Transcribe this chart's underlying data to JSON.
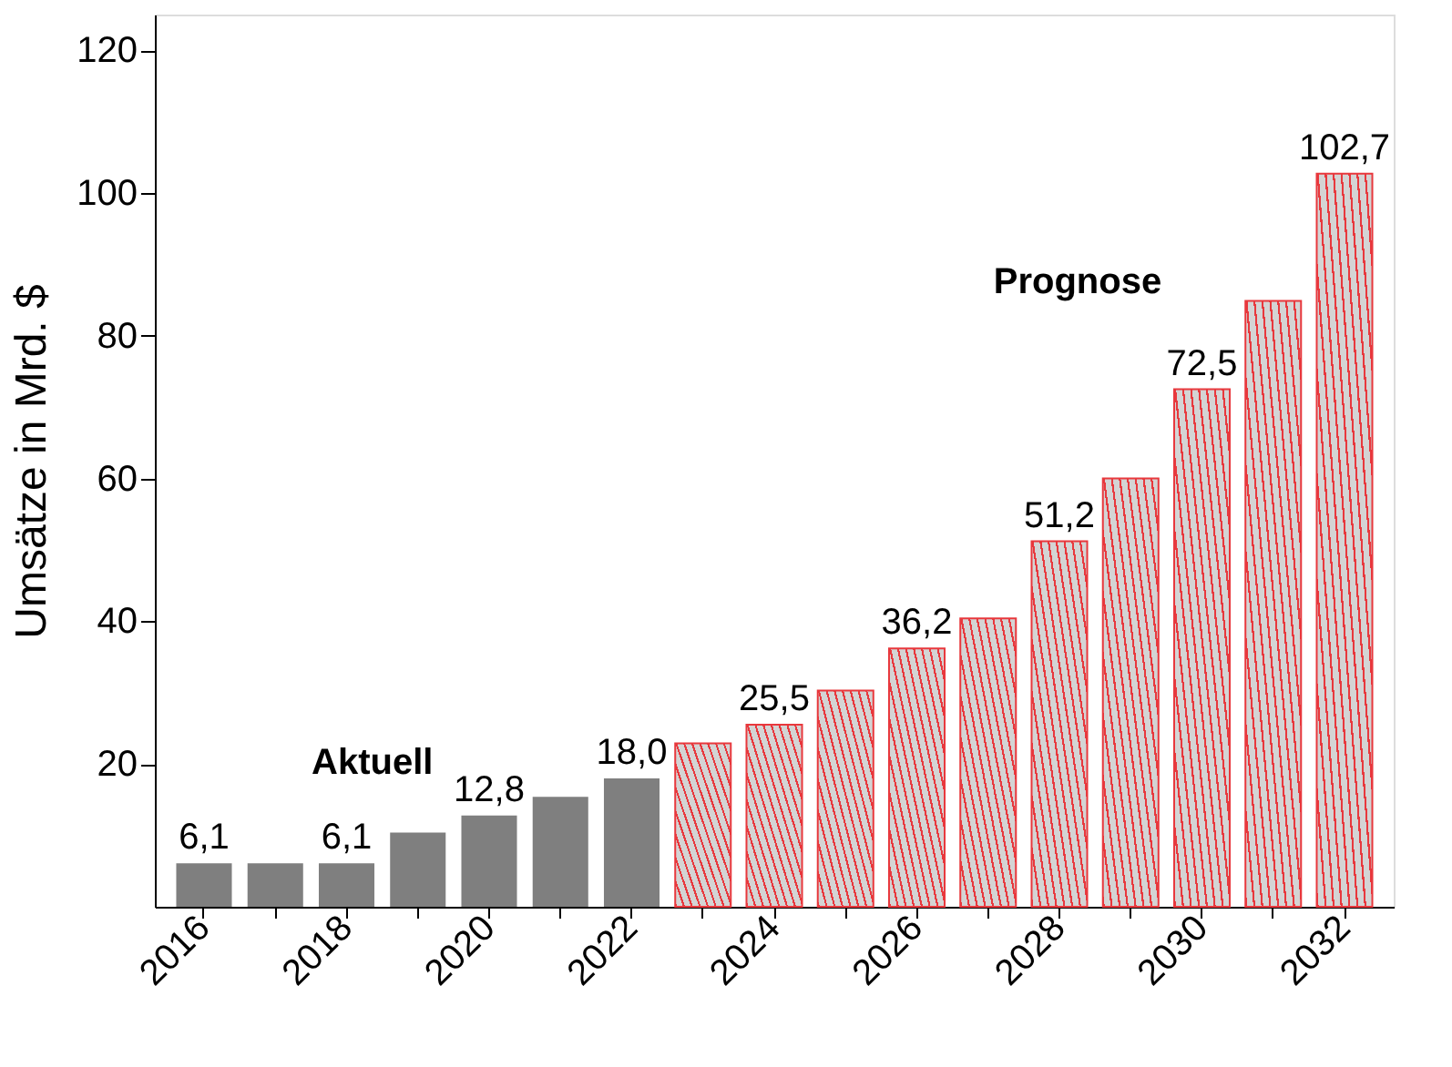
{
  "chart_data": {
    "type": "bar",
    "ylabel": "Umsätze in Mrd. $",
    "categories": [
      "2016",
      null,
      "2018",
      null,
      "2020",
      null,
      "2022",
      null,
      "2024",
      null,
      "2026",
      null,
      "2028",
      null,
      "2030",
      null,
      "2032"
    ],
    "series": [
      {
        "name": "Aktuell",
        "color": "#7f7f7f",
        "values": [
          6.1,
          6.1,
          6.1,
          10.4,
          12.8,
          15.4,
          18.0,
          null,
          null,
          null,
          null,
          null,
          null,
          null,
          null,
          null,
          null
        ],
        "value_labels": [
          "6,1",
          null,
          "6,1",
          null,
          "12,8",
          null,
          "18,0",
          null,
          null,
          null,
          null,
          null,
          null,
          null,
          null,
          null,
          null
        ]
      },
      {
        "name": "Prognose",
        "color": "#e8383d",
        "values": [
          null,
          null,
          null,
          null,
          null,
          null,
          null,
          22.9,
          25.5,
          30.3,
          36.2,
          40.4,
          51.2,
          60.0,
          72.5,
          84.9,
          102.7
        ],
        "value_labels": [
          null,
          null,
          null,
          null,
          null,
          null,
          null,
          null,
          "25,5",
          null,
          "36,2",
          null,
          "51,2",
          null,
          "72,5",
          null,
          "102,7"
        ]
      }
    ],
    "ylim": [
      0,
      125
    ],
    "yticks": [
      20,
      40,
      60,
      80,
      100,
      120
    ],
    "grid": false,
    "legend": false
  }
}
